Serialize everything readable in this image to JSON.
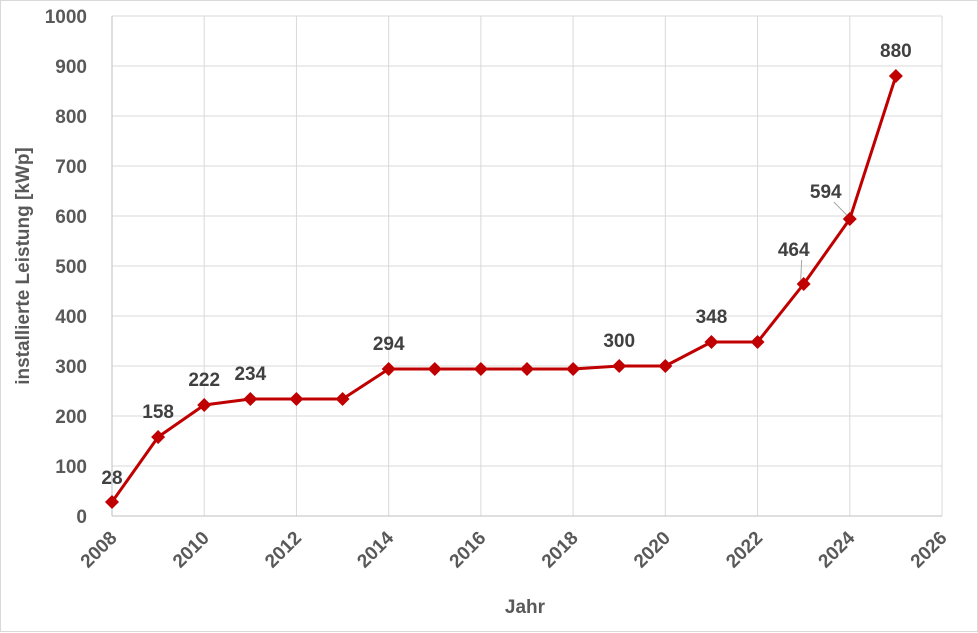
{
  "chart_data": {
    "type": "line",
    "title": "",
    "xlabel": "Jahr",
    "ylabel": "installierte Leistung [kWp]",
    "xlim": [
      2008,
      2026
    ],
    "ylim": [
      0,
      1000
    ],
    "x_ticks": [
      "2008",
      "2010",
      "2012",
      "2014",
      "2016",
      "2018",
      "2020",
      "2022",
      "2024",
      "2026"
    ],
    "y_ticks": [
      "0",
      "100",
      "200",
      "300",
      "400",
      "500",
      "600",
      "700",
      "800",
      "900",
      "1000"
    ],
    "grid": true,
    "legend": "none",
    "line_color": "#c00000",
    "marker": "diamond",
    "series": [
      {
        "x": [
          2008,
          2009,
          2010,
          2011,
          2012,
          2013,
          2014,
          2015,
          2016,
          2017,
          2018,
          2019,
          2020,
          2021,
          2022,
          2023,
          2024,
          2025
        ],
        "y": [
          28,
          158,
          222,
          234,
          234,
          234,
          294,
          294,
          294,
          294,
          294,
          300,
          300,
          348,
          348,
          464,
          594,
          880
        ]
      }
    ],
    "data_labels": [
      {
        "x": 2008,
        "text": "28"
      },
      {
        "x": 2009,
        "text": "158"
      },
      {
        "x": 2010,
        "text": "222"
      },
      {
        "x": 2011,
        "text": "234"
      },
      {
        "x": 2014,
        "text": "294"
      },
      {
        "x": 2019,
        "text": "300"
      },
      {
        "x": 2021,
        "text": "348"
      },
      {
        "x": 2023,
        "text": "464"
      },
      {
        "x": 2024,
        "text": "594"
      },
      {
        "x": 2025,
        "text": "880"
      }
    ]
  }
}
